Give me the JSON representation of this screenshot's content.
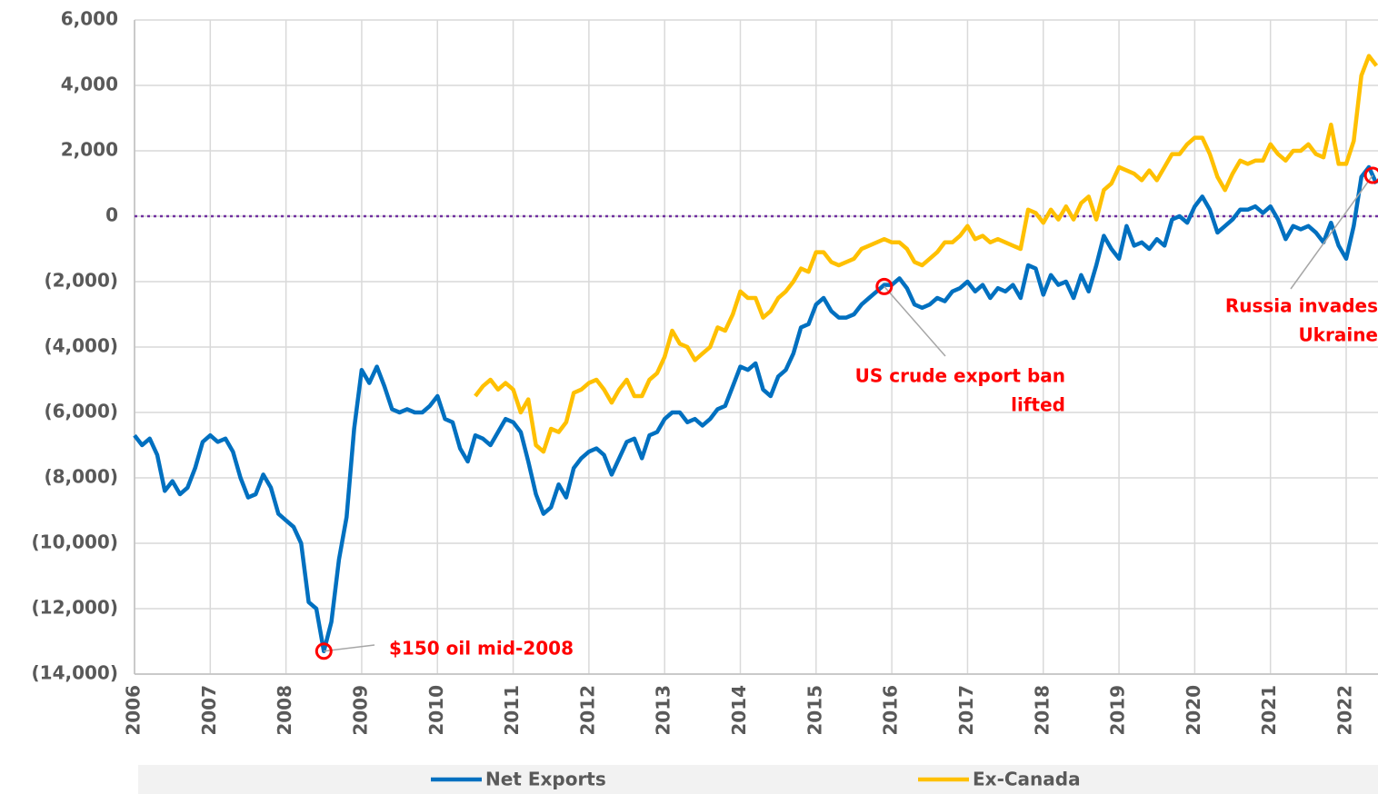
{
  "chart_data": {
    "type": "line",
    "x": [
      2006,
      2006.1,
      2006.2,
      2006.3,
      2006.4,
      2006.5,
      2006.6,
      2006.7,
      2006.8,
      2006.9,
      2007,
      2007.1,
      2007.2,
      2007.3,
      2007.4,
      2007.5,
      2007.6,
      2007.7,
      2007.8,
      2007.9,
      2008,
      2008.1,
      2008.2,
      2008.3,
      2008.4,
      2008.5,
      2008.6,
      2008.7,
      2008.8,
      2008.9,
      2009,
      2009.1,
      2009.2,
      2009.3,
      2009.4,
      2009.5,
      2009.6,
      2009.7,
      2009.8,
      2009.9,
      2010,
      2010.1,
      2010.2,
      2010.3,
      2010.4,
      2010.5,
      2010.6,
      2010.7,
      2010.8,
      2010.9,
      2011,
      2011.1,
      2011.2,
      2011.3,
      2011.4,
      2011.5,
      2011.6,
      2011.7,
      2011.8,
      2011.9,
      2012,
      2012.1,
      2012.2,
      2012.3,
      2012.4,
      2012.5,
      2012.6,
      2012.7,
      2012.8,
      2012.9,
      2013,
      2013.1,
      2013.2,
      2013.3,
      2013.4,
      2013.5,
      2013.6,
      2013.7,
      2013.8,
      2013.9,
      2014,
      2014.1,
      2014.2,
      2014.3,
      2014.4,
      2014.5,
      2014.6,
      2014.7,
      2014.8,
      2014.9,
      2015,
      2015.1,
      2015.2,
      2015.3,
      2015.4,
      2015.5,
      2015.6,
      2015.7,
      2015.8,
      2015.9,
      2016,
      2016.1,
      2016.2,
      2016.3,
      2016.4,
      2016.5,
      2016.6,
      2016.7,
      2016.8,
      2016.9,
      2017,
      2017.1,
      2017.2,
      2017.3,
      2017.4,
      2017.5,
      2017.6,
      2017.7,
      2017.8,
      2017.9,
      2018,
      2018.1,
      2018.2,
      2018.3,
      2018.4,
      2018.5,
      2018.6,
      2018.7,
      2018.8,
      2018.9,
      2019,
      2019.1,
      2019.2,
      2019.3,
      2019.4,
      2019.5,
      2019.6,
      2019.7,
      2019.8,
      2019.9,
      2020,
      2020.1,
      2020.2,
      2020.3,
      2020.4,
      2020.5,
      2020.6,
      2020.7,
      2020.8,
      2020.9,
      2021,
      2021.1,
      2021.2,
      2021.3,
      2021.4,
      2021.5,
      2021.6,
      2021.7,
      2021.8,
      2021.9,
      2022,
      2022.1,
      2022.2,
      2022.3,
      2022.4
    ],
    "series": [
      {
        "name": "Net Exports",
        "color": "#0070c0",
        "values": [
          -6700,
          -7000,
          -6800,
          -7300,
          -8400,
          -8100,
          -8500,
          -8300,
          -7700,
          -6900,
          -6700,
          -6900,
          -6800,
          -7200,
          -8000,
          -8600,
          -8500,
          -7900,
          -8300,
          -9100,
          -9300,
          -9500,
          -10000,
          -11800,
          -12000,
          -13300,
          -12400,
          -10500,
          -9200,
          -6500,
          -4700,
          -5100,
          -4600,
          -5200,
          -5900,
          -6000,
          -5900,
          -6000,
          -6000,
          -5800,
          -5500,
          -6200,
          -6300,
          -7100,
          -7500,
          -6700,
          -6800,
          -7000,
          -6600,
          -6200,
          -6300,
          -6600,
          -7500,
          -8500,
          -9100,
          -8900,
          -8200,
          -8600,
          -7700,
          -7400,
          -7200,
          -7100,
          -7300,
          -7900,
          -7400,
          -6900,
          -6800,
          -7400,
          -6700,
          -6600,
          -6200,
          -6000,
          -6000,
          -6300,
          -6200,
          -6400,
          -6200,
          -5900,
          -5800,
          -5200,
          -4600,
          -4700,
          -4500,
          -5300,
          -5500,
          -4900,
          -4700,
          -4200,
          -3400,
          -3300,
          -2700,
          -2500,
          -2900,
          -3100,
          -3100,
          -3000,
          -2700,
          -2500,
          -2300,
          -2100,
          -2100,
          -1900,
          -2200,
          -2700,
          -2800,
          -2700,
          -2500,
          -2600,
          -2300,
          -2200,
          -2000,
          -2300,
          -2100,
          -2500,
          -2200,
          -2300,
          -2100,
          -2500,
          -1500,
          -1600,
          -2400,
          -1800,
          -2100,
          -2000,
          -2500,
          -1800,
          -2300,
          -1500,
          -600,
          -1000,
          -1300,
          -300,
          -900,
          -800,
          -1000,
          -700,
          -900,
          -100,
          0,
          -200,
          300,
          600,
          200,
          -500,
          -300,
          -100,
          200,
          200,
          300,
          100,
          300,
          -100,
          -700,
          -300,
          -400,
          -300,
          -500,
          -800,
          -200,
          -900,
          -1300,
          -300,
          1200,
          1500,
          1000
        ]
      },
      {
        "name": "Ex-Canada",
        "color": "#ffc000",
        "values": [
          null,
          null,
          null,
          null,
          null,
          null,
          null,
          null,
          null,
          null,
          null,
          null,
          null,
          null,
          null,
          null,
          null,
          null,
          null,
          null,
          null,
          null,
          null,
          null,
          null,
          null,
          null,
          null,
          null,
          null,
          null,
          null,
          null,
          null,
          null,
          null,
          null,
          null,
          null,
          null,
          null,
          null,
          null,
          null,
          null,
          -5500,
          -5200,
          -5000,
          -5300,
          -5100,
          -5300,
          -6000,
          -5600,
          -7000,
          -7200,
          -6500,
          -6600,
          -6300,
          -5400,
          -5300,
          -5100,
          -5000,
          -5300,
          -5700,
          -5300,
          -5000,
          -5500,
          -5500,
          -5000,
          -4800,
          -4300,
          -3500,
          -3900,
          -4000,
          -4400,
          -4200,
          -4000,
          -3400,
          -3500,
          -3000,
          -2300,
          -2500,
          -2500,
          -3100,
          -2900,
          -2500,
          -2300,
          -2000,
          -1600,
          -1700,
          -1100,
          -1100,
          -1400,
          -1500,
          -1400,
          -1300,
          -1000,
          -900,
          -800,
          -700,
          -800,
          -800,
          -1000,
          -1400,
          -1500,
          -1300,
          -1100,
          -800,
          -800,
          -600,
          -300,
          -700,
          -600,
          -800,
          -700,
          -800,
          -900,
          -1000,
          200,
          100,
          -200,
          200,
          -100,
          300,
          -100,
          400,
          600,
          -100,
          800,
          1000,
          1500,
          1400,
          1300,
          1100,
          1400,
          1100,
          1500,
          1900,
          1900,
          2200,
          2400,
          2400,
          1900,
          1200,
          800,
          1300,
          1700,
          1600,
          1700,
          1700,
          2200,
          1900,
          1700,
          2000,
          2000,
          2200,
          1900,
          1800,
          2800,
          1600,
          1600,
          2300,
          4300,
          4900,
          4600
        ]
      }
    ],
    "xlim": [
      2006,
      2022.42
    ],
    "xticks": [
      2006,
      2007,
      2008,
      2009,
      2010,
      2011,
      2012,
      2013,
      2014,
      2015,
      2016,
      2017,
      2018,
      2019,
      2020,
      2021,
      2022
    ],
    "ylim": [
      -14000,
      6000
    ],
    "yticks": [
      {
        "value": 6000,
        "label": "6,000"
      },
      {
        "value": 4000,
        "label": "4,000"
      },
      {
        "value": 2000,
        "label": "2,000"
      },
      0,
      {
        "value": -2000,
        "label": "(2,000)"
      },
      {
        "value": -4000,
        "label": "(4,000)"
      },
      {
        "value": -6000,
        "label": "(6,000)"
      },
      {
        "value": -8000,
        "label": "(8,000)"
      },
      {
        "value": -10000,
        "label": "(10,000)"
      },
      {
        "value": -12000,
        "label": "(12,000)"
      },
      {
        "value": -14000,
        "label": "(14,000)"
      }
    ],
    "grid": true,
    "reference_line": {
      "value": 0,
      "color": "#7030a0"
    },
    "annotations": [
      {
        "lines": [
          "$150 oil mid-2008"
        ],
        "x": 2008.5,
        "y": -13300,
        "color": "#ff0000"
      },
      {
        "lines": [
          "US crude export ban",
          "lifted"
        ],
        "x": 2015.9,
        "y": -2150,
        "color": "#ff0000"
      },
      {
        "lines": [
          "Russia invades",
          "Ukraine"
        ],
        "x": 2022.35,
        "y": 1250,
        "color": "#ff0000"
      }
    ],
    "legend": "bottom"
  }
}
